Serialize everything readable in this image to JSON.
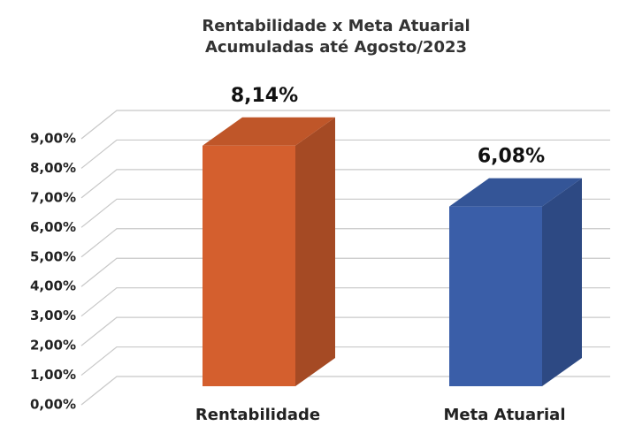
{
  "chart_data": {
    "type": "bar3d",
    "title": "Rentabilidade x Meta Atuarial",
    "subtitle": "Acumuladas até Agosto/2023",
    "categories": [
      "Rentabilidade",
      "Meta Atuarial"
    ],
    "values": [
      8.14,
      6.08
    ],
    "value_labels": [
      "8,14%",
      "6,08%"
    ],
    "colors": [
      "#d45f2e",
      "#3a5ea8"
    ],
    "ylim": [
      0,
      9
    ],
    "yticks": [
      {
        "value": 0,
        "label": "0,00%"
      },
      {
        "value": 1,
        "label": "1,00%"
      },
      {
        "value": 2,
        "label": "2,00%"
      },
      {
        "value": 3,
        "label": "3,00%"
      },
      {
        "value": 4,
        "label": "4,00%"
      },
      {
        "value": 5,
        "label": "5,00%"
      },
      {
        "value": 6,
        "label": "6,00%"
      },
      {
        "value": 7,
        "label": "7,00%"
      },
      {
        "value": 8,
        "label": "8,00%"
      },
      {
        "value": 9,
        "label": "9,00%"
      }
    ],
    "grid": true
  }
}
